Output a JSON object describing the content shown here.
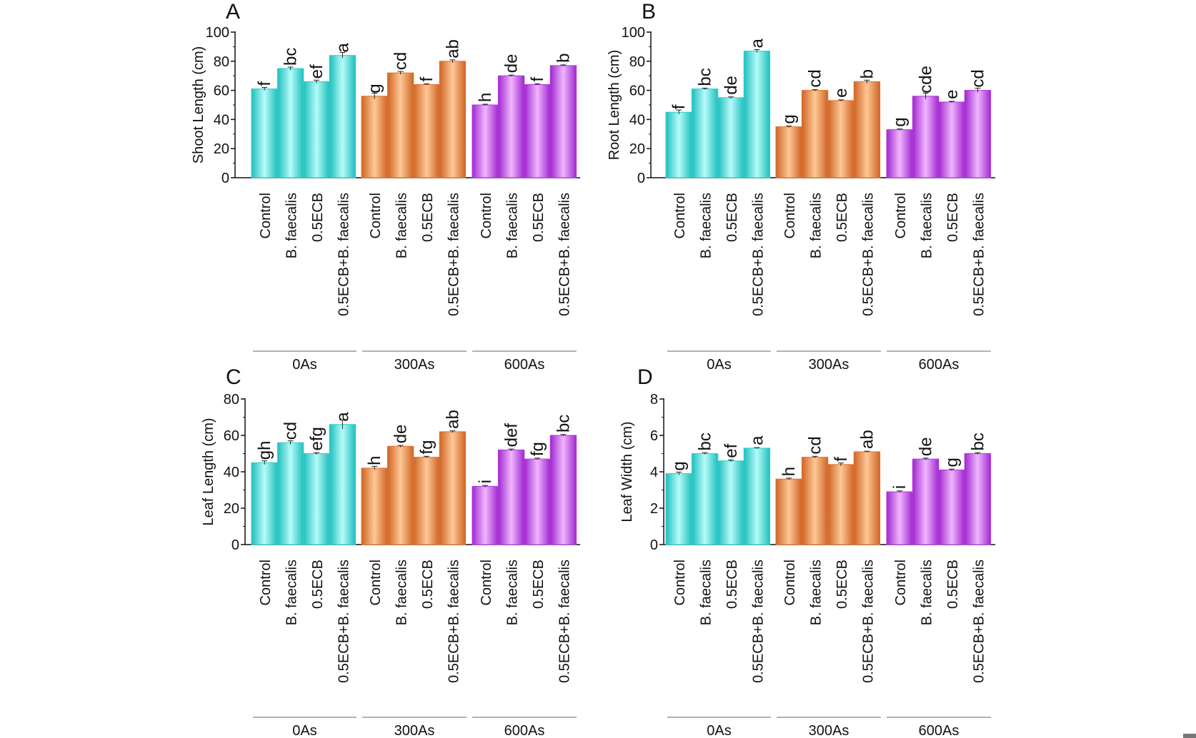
{
  "colors": {
    "0As": "#2fd2cf",
    "300As": "#e0742d",
    "600As": "#b436de",
    "axis": "#111111",
    "group_line": "#999999"
  },
  "chart_data": [
    {
      "panel_letter": "A",
      "type": "bar",
      "ylabel": "Shoot Length (cm)",
      "ylim": [
        0,
        100
      ],
      "yticks": [
        "0",
        "20",
        "40",
        "60",
        "80",
        "100"
      ],
      "groups": [
        "0As",
        "300As",
        "600As"
      ],
      "categories": [
        "Control",
        "B. faecalis",
        "0.5ECB",
        "0.5ECB+B. faecalis"
      ],
      "series": [
        {
          "group": "0As",
          "values": [
            61,
            75,
            66,
            84
          ],
          "errors": [
            1.0,
            1.0,
            1.0,
            2.0
          ],
          "letters": [
            "f",
            "bc",
            "ef",
            "a"
          ]
        },
        {
          "group": "300As",
          "values": [
            56,
            72,
            64,
            80
          ],
          "errors": [
            2.0,
            1.0,
            0.5,
            1.0
          ],
          "letters": [
            "g",
            "cd",
            "f",
            "ab"
          ]
        },
        {
          "group": "600As",
          "values": [
            50,
            70,
            64,
            77
          ],
          "errors": [
            0.5,
            0.5,
            0.5,
            0.5
          ],
          "letters": [
            "h",
            "de",
            "f",
            "b"
          ]
        }
      ]
    },
    {
      "panel_letter": "B",
      "type": "bar",
      "ylabel": "Root Length (cm)",
      "ylim": [
        0,
        100
      ],
      "yticks": [
        "0",
        "20",
        "40",
        "60",
        "80",
        "100"
      ],
      "groups": [
        "0As",
        "300As",
        "600As"
      ],
      "categories": [
        "Control",
        "B. faecalis",
        "0.5ECB",
        "0.5ECB+B. faecalis"
      ],
      "series": [
        {
          "group": "0As",
          "values": [
            45,
            61,
            55,
            87
          ],
          "errors": [
            1.5,
            0.5,
            0.5,
            1.0
          ],
          "letters": [
            "f",
            "bc",
            "de",
            "a"
          ]
        },
        {
          "group": "300As",
          "values": [
            35,
            60,
            53,
            66
          ],
          "errors": [
            0.5,
            0.5,
            0.5,
            1.0
          ],
          "letters": [
            "g",
            "cd",
            "e",
            "b"
          ]
        },
        {
          "group": "600As",
          "values": [
            33,
            56,
            52,
            60
          ],
          "errors": [
            0.5,
            2.0,
            0.5,
            1.5
          ],
          "letters": [
            "g",
            "cde",
            "e",
            "cd"
          ]
        }
      ]
    },
    {
      "panel_letter": "C",
      "type": "bar",
      "ylabel": "Leaf Length (cm)",
      "ylim": [
        0,
        80
      ],
      "yticks": [
        "0",
        "20",
        "40",
        "60",
        "80"
      ],
      "groups": [
        "0As",
        "300As",
        "600As"
      ],
      "categories": [
        "Control",
        "B. faecalis",
        "0.5ECB",
        "0.5ECB+B. faecalis"
      ],
      "series": [
        {
          "group": "0As",
          "values": [
            45,
            56,
            50,
            66
          ],
          "errors": [
            1.0,
            1.0,
            0.5,
            2.5
          ],
          "letters": [
            "gh",
            "cd",
            "efg",
            "a"
          ]
        },
        {
          "group": "300As",
          "values": [
            42,
            54,
            48,
            62
          ],
          "errors": [
            1.0,
            0.5,
            0.5,
            0.5
          ],
          "letters": [
            "h",
            "de",
            "fg",
            "ab"
          ]
        },
        {
          "group": "600As",
          "values": [
            32,
            52,
            47,
            60
          ],
          "errors": [
            0.5,
            0.5,
            0.5,
            0.5
          ],
          "letters": [
            "i",
            "def",
            "fg",
            "bc"
          ]
        }
      ]
    },
    {
      "panel_letter": "D",
      "type": "bar",
      "ylabel": "Leaf Width (cm)",
      "ylim": [
        0,
        8
      ],
      "yticks": [
        "0",
        "2",
        "4",
        "6",
        "8"
      ],
      "groups": [
        "0As",
        "300As",
        "600As"
      ],
      "categories": [
        "Control",
        "B. faecalis",
        "0.5ECB",
        "0.5ECB+B. faecalis"
      ],
      "series": [
        {
          "group": "0As",
          "values": [
            3.9,
            5.0,
            4.6,
            5.3
          ],
          "errors": [
            0.08,
            0.05,
            0.05,
            0.03
          ],
          "letters": [
            "g",
            "bc",
            "ef",
            "a"
          ]
        },
        {
          "group": "300As",
          "values": [
            3.6,
            4.8,
            4.4,
            5.1
          ],
          "errors": [
            0.05,
            0.05,
            0.08,
            0.03
          ],
          "letters": [
            "h",
            "cd",
            "f",
            "ab"
          ]
        },
        {
          "group": "600As",
          "values": [
            2.9,
            4.7,
            4.1,
            5.0
          ],
          "errors": [
            0.05,
            0.05,
            0.05,
            0.05
          ],
          "letters": [
            "i",
            "de",
            "g",
            "bc"
          ]
        }
      ]
    }
  ]
}
